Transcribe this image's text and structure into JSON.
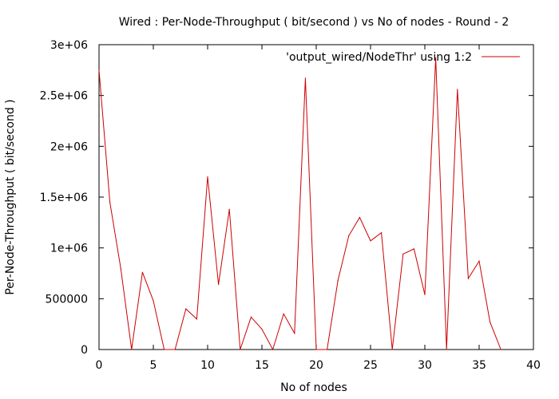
{
  "chart_data": {
    "type": "line",
    "title": "Wired : Per-Node-Throughput ( bit/second ) vs No of nodes - Round - 2",
    "xlabel": "No of nodes",
    "ylabel": "Per-Node-Throughput ( bit/second )",
    "xlim": [
      0,
      40
    ],
    "ylim": [
      0,
      3000000
    ],
    "x_ticks": [
      0,
      5,
      10,
      15,
      20,
      25,
      30,
      35,
      40
    ],
    "x_tick_labels": [
      "0",
      "5",
      "10",
      "15",
      "20",
      "25",
      "30",
      "35",
      "40"
    ],
    "y_ticks": [
      0,
      500000,
      1000000,
      1500000,
      2000000,
      2500000,
      3000000
    ],
    "y_tick_labels": [
      "0",
      "500000",
      "1e+06",
      "1.5e+06",
      "2e+06",
      "2.5e+06",
      "3e+06"
    ],
    "grid": false,
    "legend_position": "top-right",
    "series": [
      {
        "name": "'output_wired/NodeThr' using 1:2",
        "color": "#cc0000",
        "x": [
          0,
          1,
          2,
          3,
          4,
          5,
          6,
          7,
          8,
          9,
          10,
          11,
          12,
          13,
          14,
          15,
          16,
          17,
          18,
          19,
          20,
          21,
          22,
          23,
          24,
          25,
          26,
          27,
          28,
          29,
          30,
          31,
          32,
          33,
          34,
          35,
          36,
          37
        ],
        "y": [
          2750000,
          1450000,
          800000,
          0,
          760000,
          480000,
          0,
          0,
          400000,
          300000,
          1700000,
          640000,
          1380000,
          0,
          320000,
          200000,
          0,
          350000,
          160000,
          2670000,
          0,
          0,
          680000,
          1120000,
          1300000,
          1070000,
          1150000,
          0,
          940000,
          990000,
          540000,
          2870000,
          0,
          2560000,
          700000,
          870000,
          270000,
          0
        ]
      }
    ]
  }
}
